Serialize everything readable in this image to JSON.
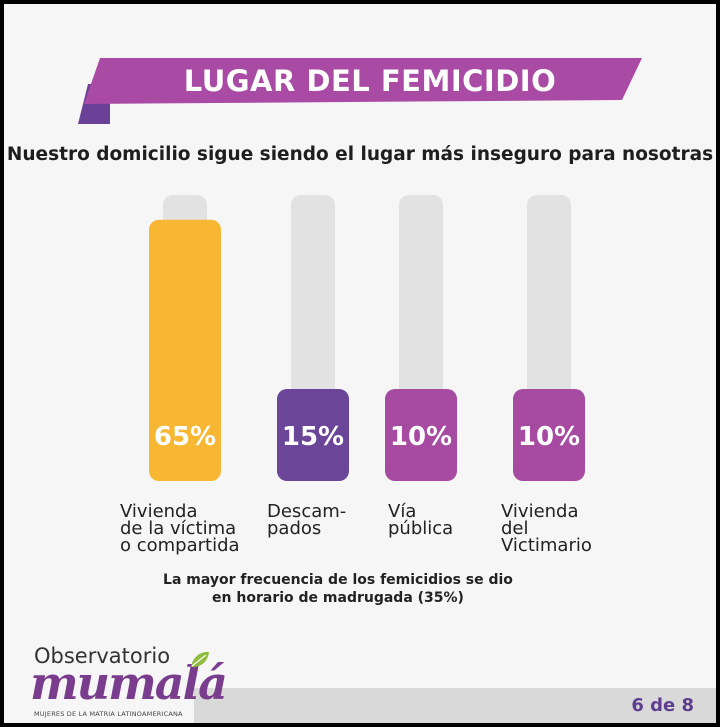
{
  "header": {
    "title": "LUGAR DEL FEMICIDIO",
    "subtitle": "Nuestro domicilio sigue siendo el lugar más inseguro para nosotras"
  },
  "colors": {
    "banner": "#a94aa5",
    "banner_dark": "#6a4196",
    "track": "#e2e2e2",
    "yellow": "#f7b733",
    "violet": "#6a4598",
    "magenta": "#a64aa2"
  },
  "chart_data": {
    "type": "bar",
    "categories": [
      "Vivienda\nde la víctima\no compartida",
      "Descam-\npados",
      "Vía\npública",
      "Vivienda\ndel\nVictimario"
    ],
    "values": [
      65,
      15,
      10,
      10
    ],
    "value_labels": [
      "65%",
      "15%",
      "10%",
      "10%"
    ],
    "bar_colors": [
      "#f7b733",
      "#6a4598",
      "#a64aa2",
      "#a64aa2"
    ],
    "ylim": [
      0,
      100
    ]
  },
  "footnote": "La mayor frecuencia de los femicidios se dio\nen horario de madrugada (35%)",
  "logo": {
    "top": "Observatorio",
    "main": "mumalá",
    "sub": "MUJERES DE LA MATRIA LATINOAMERICANA",
    "icon": "leaf-icon"
  },
  "pagination": "6 de 8"
}
